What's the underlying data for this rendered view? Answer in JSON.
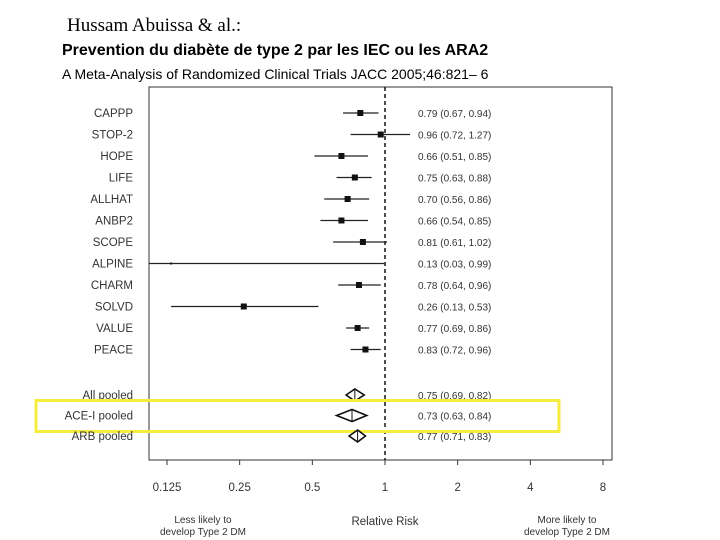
{
  "header": {
    "author": "Hussam Abuissa & al.:",
    "title": "Prevention du diabète de type 2 par les IEC ou les ARA2",
    "subtitle": "A Meta-Analysis of Randomized Clinical Trials JACC 2005;46:821– 6"
  },
  "highlight_color": "#f5ec3f",
  "chart_data": {
    "type": "forest",
    "xscale": "log2",
    "xlim": [
      0.1,
      10
    ],
    "xlabel": "Relative Risk",
    "left_note": [
      "Less likely to",
      "develop Type 2 DM"
    ],
    "right_note": [
      "More likely to",
      "develop Type 2 DM"
    ],
    "ticks": [
      {
        "value": 0.125,
        "label": "0.125"
      },
      {
        "value": 0.25,
        "label": "0.25"
      },
      {
        "value": 0.5,
        "label": "0.5"
      },
      {
        "value": 1,
        "label": "1"
      },
      {
        "value": 2,
        "label": "2"
      },
      {
        "value": 4,
        "label": "4"
      },
      {
        "value": 8,
        "label": "8"
      }
    ],
    "reference_line": 1,
    "studies": [
      {
        "name": "CAPPP",
        "rr": 0.79,
        "lo": 0.67,
        "hi": 0.94,
        "ci_text": "0.79 (0.67, 0.94)"
      },
      {
        "name": "STOP-2",
        "rr": 0.96,
        "lo": 0.72,
        "hi": 1.27,
        "ci_text": "0.96 (0.72, 1.27)"
      },
      {
        "name": "HOPE",
        "rr": 0.66,
        "lo": 0.51,
        "hi": 0.85,
        "ci_text": "0.66 (0.51, 0.85)"
      },
      {
        "name": "LIFE",
        "rr": 0.75,
        "lo": 0.63,
        "hi": 0.88,
        "ci_text": "0.75 (0.63, 0.88)"
      },
      {
        "name": "ALLHAT",
        "rr": 0.7,
        "lo": 0.56,
        "hi": 0.86,
        "ci_text": "0.70 (0.56, 0.86)"
      },
      {
        "name": "ANBP2",
        "rr": 0.66,
        "lo": 0.54,
        "hi": 0.85,
        "ci_text": "0.66 (0.54, 0.85)"
      },
      {
        "name": "SCOPE",
        "rr": 0.81,
        "lo": 0.61,
        "hi": 1.02,
        "ci_text": "0.81 (0.61, 1.02)"
      },
      {
        "name": "ALPINE",
        "rr": 0.13,
        "lo": 0.03,
        "hi": 0.99,
        "ci_text": "0.13 (0.03, 0.99)"
      },
      {
        "name": "CHARM",
        "rr": 0.78,
        "lo": 0.64,
        "hi": 0.96,
        "ci_text": "0.78 (0.64, 0.96)"
      },
      {
        "name": "SOLVD",
        "rr": 0.26,
        "lo": 0.13,
        "hi": 0.53,
        "ci_text": "0.26 (0.13, 0.53)"
      },
      {
        "name": "VALUE",
        "rr": 0.77,
        "lo": 0.69,
        "hi": 0.86,
        "ci_text": "0.77 (0.69, 0.86)"
      },
      {
        "name": "PEACE",
        "rr": 0.83,
        "lo": 0.72,
        "hi": 0.96,
        "ci_text": "0.83 (0.72, 0.96)"
      }
    ],
    "pooled": [
      {
        "name": "All pooled",
        "rr": 0.75,
        "lo": 0.69,
        "hi": 0.82,
        "ci_text": "0.75 (0.69, 0.82)"
      },
      {
        "name": "ACE-I pooled",
        "rr": 0.73,
        "lo": 0.63,
        "hi": 0.84,
        "ci_text": "0.73 (0.63, 0.84)",
        "highlighted": true
      },
      {
        "name": "ARB pooled",
        "rr": 0.77,
        "lo": 0.71,
        "hi": 0.83,
        "ci_text": "0.77 (0.71, 0.83)"
      }
    ]
  }
}
